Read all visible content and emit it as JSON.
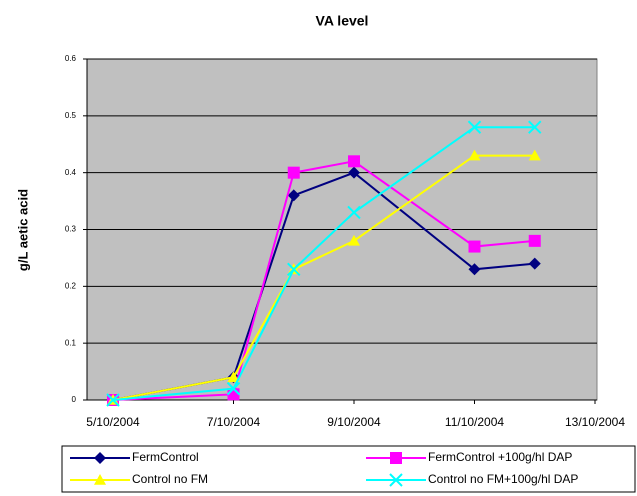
{
  "chart_data": {
    "type": "line",
    "title": "VA level",
    "y_label": "g/L aetic acid",
    "x": [
      "5/10/2004",
      "7/10/2004",
      "8/10/2004",
      "9/10/2004",
      "11/10/2004",
      "12/10/2004"
    ],
    "xlim": [
      "5/10/2004",
      "13/10/2004"
    ],
    "xticks": [
      "5/10/2004",
      "7/10/2004",
      "9/10/2004",
      "11/10/2004",
      "13/10/2004"
    ],
    "ylim": [
      0,
      0.6
    ],
    "yticks": [
      0,
      0.1,
      0.2,
      0.3,
      0.4,
      0.5,
      0.6
    ],
    "grid": true,
    "legend": "bottom",
    "series": [
      {
        "name": "FermControl",
        "color": "#000080",
        "marker": "diamond",
        "values": [
          0,
          0.04,
          0.36,
          0.4,
          0.23,
          0.24
        ]
      },
      {
        "name": "FermControl +100g/hl DAP",
        "color": "#FF00FF",
        "marker": "square",
        "values": [
          0,
          0.01,
          0.4,
          0.42,
          0.27,
          0.28
        ]
      },
      {
        "name": "Control no FM",
        "color": "#FFFF00",
        "marker": "triangle",
        "values": [
          0,
          0.04,
          0.23,
          0.28,
          0.43,
          0.43
        ]
      },
      {
        "name": "Control no FM+100g/hl DAP",
        "color": "#00FFFF",
        "marker": "x",
        "values": [
          0,
          0.02,
          0.23,
          0.33,
          0.48,
          0.48
        ]
      }
    ]
  }
}
